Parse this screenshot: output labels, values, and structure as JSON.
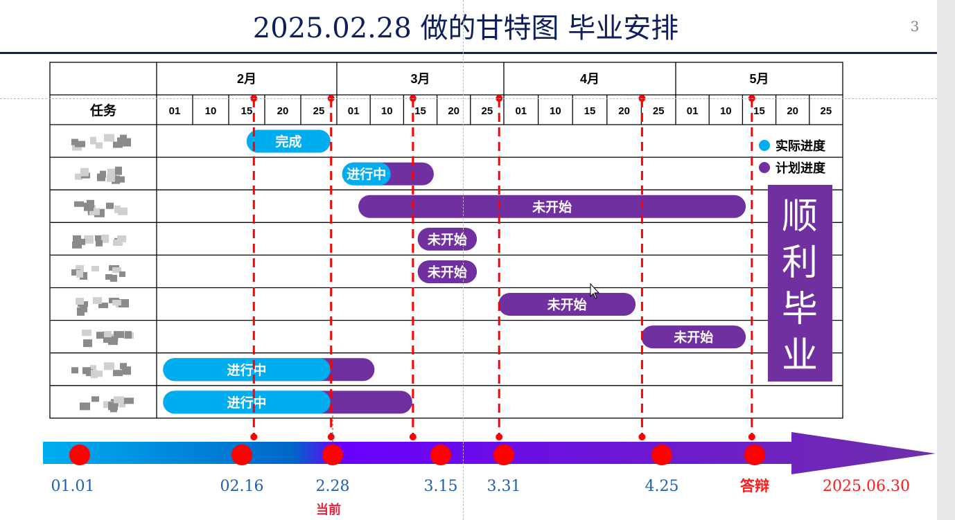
{
  "slide": {
    "title": "2025.02.28 做的甘特图 毕业安排",
    "page_number": "3",
    "side_banner": [
      "顺",
      "利",
      "毕",
      "业"
    ]
  },
  "colors": {
    "actual": "#00aef0",
    "planned": "#7030a0",
    "deadline": "#ff0000",
    "title": "#0e1f5b"
  },
  "chart_data": {
    "type": "gantt",
    "task_header": "任务",
    "months": [
      {
        "label": "2月",
        "days": [
          "01",
          "10",
          "15",
          "20",
          "25"
        ]
      },
      {
        "label": "3月",
        "days": [
          "01",
          "10",
          "15",
          "20",
          "25"
        ]
      },
      {
        "label": "4月",
        "days": [
          "01",
          "10",
          "15",
          "20",
          "25"
        ]
      },
      {
        "label": "5月",
        "days": [
          "01",
          "10",
          "15",
          "20",
          "25"
        ]
      }
    ],
    "legend": [
      {
        "label": "实际进度",
        "color": "#00aef0"
      },
      {
        "label": "计划进度",
        "color": "#7030a0"
      }
    ],
    "tasks": [
      {
        "planned": [
          "02-15",
          "02-28"
        ],
        "actual": [
          "02-15",
          "02-28"
        ],
        "label": "完成"
      },
      {
        "planned": [
          "03-02",
          "03-19"
        ],
        "actual": [
          "03-02",
          "03-11"
        ],
        "label": "进行中"
      },
      {
        "planned": [
          "03-05",
          "05-14"
        ],
        "label": "未开始"
      },
      {
        "planned": [
          "03-16",
          "03-27"
        ],
        "label": "未开始"
      },
      {
        "planned": [
          "03-16",
          "03-27"
        ],
        "label": "未开始"
      },
      {
        "planned": [
          "03-31",
          "04-24"
        ],
        "label": "未开始"
      },
      {
        "planned": [
          "04-25",
          "05-14"
        ],
        "label": "未开始"
      },
      {
        "planned": [
          "02-02",
          "03-08"
        ],
        "actual": [
          "02-02",
          "02-28"
        ],
        "label": "进行中"
      },
      {
        "planned": [
          "02-02",
          "03-15"
        ],
        "actual": [
          "02-02",
          "02-28"
        ],
        "label": "进行中"
      }
    ],
    "deadlines": [
      "02-16",
      "02-28",
      "03-15",
      "03-31",
      "04-25",
      "05-15"
    ],
    "timeline": {
      "milestones": [
        {
          "label": "01.01"
        },
        {
          "label": "02.16"
        },
        {
          "label": "2.28",
          "sublabel": "当前"
        },
        {
          "label": "3.15"
        },
        {
          "label": "3.31"
        },
        {
          "label": "4.25"
        },
        {
          "label": "答辩"
        },
        {
          "label": "2025.06.30"
        }
      ]
    }
  }
}
